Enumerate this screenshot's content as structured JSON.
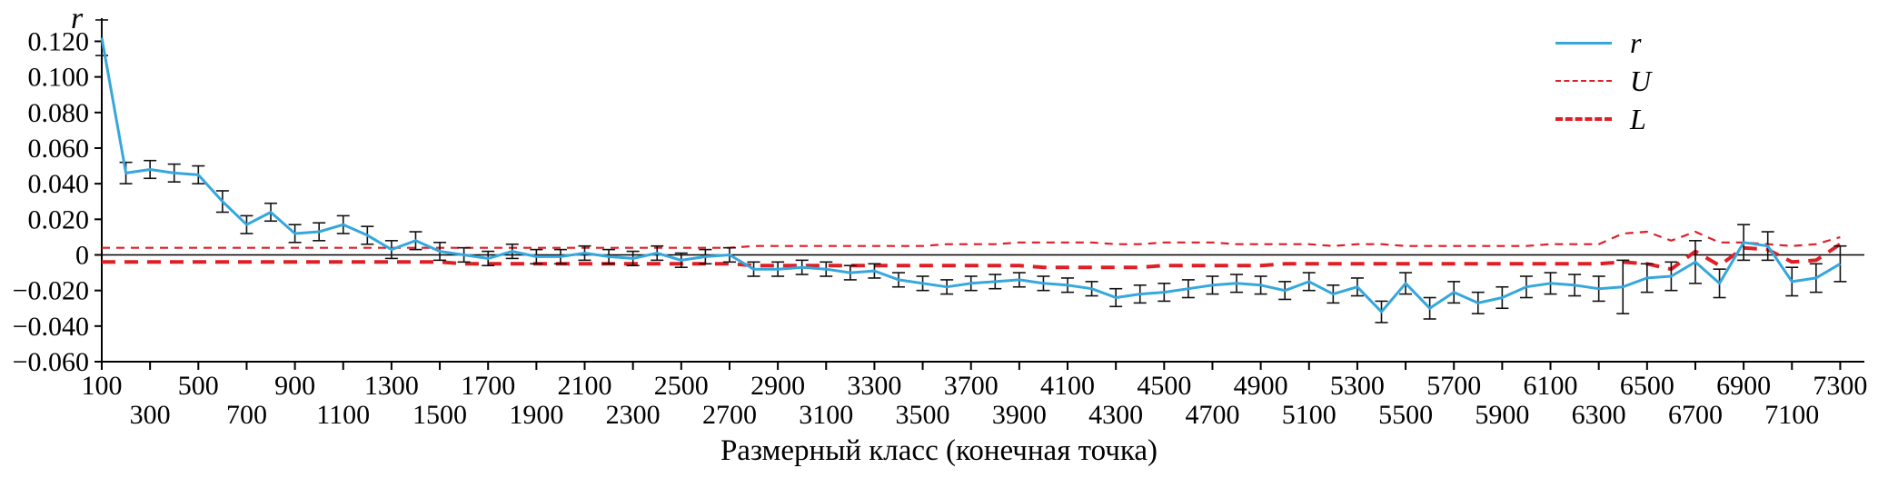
{
  "figure": {
    "y_axis_title": "r",
    "x_axis_label": "Размерный класс (конечная точка)"
  },
  "legend": {
    "items": [
      {
        "label": "r",
        "style": "solid-blue"
      },
      {
        "label": "U",
        "style": "dashed-thin-red"
      },
      {
        "label": "L",
        "style": "dashed-thick-red"
      }
    ]
  },
  "colors": {
    "r_line": "#35a7dc",
    "bound_line": "#de1f26",
    "error_bar": "#111111",
    "axis": "#000000"
  },
  "chart_data": {
    "type": "line",
    "title": "",
    "xlabel": "Размерный класс (конечная точка)",
    "ylabel": "r",
    "xlim": [
      100,
      7400
    ],
    "ylim": [
      -0.06,
      0.133
    ],
    "grid": false,
    "legend_position": "top-right",
    "x": [
      100,
      200,
      300,
      400,
      500,
      600,
      700,
      800,
      900,
      1000,
      1100,
      1200,
      1300,
      1400,
      1500,
      1600,
      1700,
      1800,
      1900,
      2000,
      2100,
      2200,
      2300,
      2400,
      2500,
      2600,
      2700,
      2800,
      2900,
      3000,
      3100,
      3200,
      3300,
      3400,
      3500,
      3600,
      3700,
      3800,
      3900,
      4000,
      4100,
      4200,
      4300,
      4400,
      4500,
      4600,
      4700,
      4800,
      4900,
      5000,
      5100,
      5200,
      5300,
      5400,
      5500,
      5600,
      5700,
      5800,
      5900,
      6000,
      6100,
      6200,
      6300,
      6400,
      6500,
      6600,
      6700,
      6800,
      6900,
      7000,
      7100,
      7200,
      7300
    ],
    "series": [
      {
        "name": "r",
        "values": [
          0.122,
          0.046,
          0.048,
          0.046,
          0.045,
          0.03,
          0.017,
          0.024,
          0.012,
          0.013,
          0.017,
          0.011,
          0.003,
          0.008,
          0.002,
          0.0,
          -0.002,
          0.002,
          -0.001,
          -0.001,
          0.001,
          -0.001,
          -0.002,
          0.001,
          -0.003,
          -0.001,
          0.0,
          -0.008,
          -0.008,
          -0.007,
          -0.008,
          -0.01,
          -0.009,
          -0.014,
          -0.016,
          -0.018,
          -0.016,
          -0.015,
          -0.014,
          -0.016,
          -0.017,
          -0.019,
          -0.024,
          -0.022,
          -0.021,
          -0.019,
          -0.017,
          -0.016,
          -0.017,
          -0.02,
          -0.015,
          -0.022,
          -0.018,
          -0.032,
          -0.016,
          -0.03,
          -0.021,
          -0.027,
          -0.024,
          -0.018,
          -0.016,
          -0.017,
          -0.019,
          -0.018,
          -0.013,
          -0.012,
          -0.004,
          -0.016,
          0.007,
          0.005,
          -0.015,
          -0.013,
          -0.005
        ],
        "errors": [
          0.01,
          0.006,
          0.005,
          0.005,
          0.005,
          0.006,
          0.005,
          0.005,
          0.005,
          0.005,
          0.005,
          0.005,
          0.005,
          0.005,
          0.005,
          0.004,
          0.004,
          0.004,
          0.004,
          0.004,
          0.004,
          0.004,
          0.004,
          0.004,
          0.004,
          0.004,
          0.004,
          0.004,
          0.004,
          0.004,
          0.004,
          0.004,
          0.004,
          0.004,
          0.004,
          0.004,
          0.004,
          0.004,
          0.004,
          0.004,
          0.004,
          0.004,
          0.005,
          0.005,
          0.005,
          0.005,
          0.005,
          0.005,
          0.005,
          0.005,
          0.005,
          0.005,
          0.005,
          0.006,
          0.006,
          0.006,
          0.006,
          0.006,
          0.006,
          0.006,
          0.006,
          0.006,
          0.007,
          0.015,
          0.008,
          0.008,
          0.012,
          0.008,
          0.01,
          0.008,
          0.008,
          0.008,
          0.01
        ]
      },
      {
        "name": "U",
        "values": [
          0.004,
          0.004,
          0.004,
          0.004,
          0.004,
          0.004,
          0.004,
          0.004,
          0.004,
          0.004,
          0.004,
          0.004,
          0.004,
          0.004,
          0.004,
          0.004,
          0.004,
          0.004,
          0.004,
          0.004,
          0.004,
          0.004,
          0.004,
          0.004,
          0.004,
          0.004,
          0.004,
          0.005,
          0.005,
          0.005,
          0.005,
          0.005,
          0.005,
          0.005,
          0.005,
          0.006,
          0.006,
          0.006,
          0.007,
          0.007,
          0.007,
          0.007,
          0.006,
          0.006,
          0.007,
          0.007,
          0.007,
          0.006,
          0.006,
          0.006,
          0.006,
          0.005,
          0.006,
          0.006,
          0.005,
          0.005,
          0.005,
          0.005,
          0.005,
          0.005,
          0.006,
          0.006,
          0.006,
          0.012,
          0.013,
          0.008,
          0.013,
          0.007,
          0.007,
          0.006,
          0.005,
          0.006,
          0.01
        ]
      },
      {
        "name": "L",
        "values": [
          -0.004,
          -0.004,
          -0.004,
          -0.004,
          -0.004,
          -0.004,
          -0.004,
          -0.004,
          -0.004,
          -0.004,
          -0.004,
          -0.004,
          -0.004,
          -0.004,
          -0.004,
          -0.005,
          -0.005,
          -0.005,
          -0.005,
          -0.005,
          -0.005,
          -0.005,
          -0.005,
          -0.005,
          -0.005,
          -0.005,
          -0.005,
          -0.006,
          -0.006,
          -0.006,
          -0.006,
          -0.006,
          -0.006,
          -0.006,
          -0.006,
          -0.006,
          -0.006,
          -0.006,
          -0.006,
          -0.007,
          -0.007,
          -0.007,
          -0.007,
          -0.007,
          -0.006,
          -0.006,
          -0.006,
          -0.006,
          -0.006,
          -0.005,
          -0.005,
          -0.005,
          -0.005,
          -0.005,
          -0.005,
          -0.005,
          -0.005,
          -0.005,
          -0.005,
          -0.005,
          -0.005,
          -0.005,
          -0.005,
          -0.004,
          -0.005,
          -0.008,
          0.002,
          -0.006,
          0.004,
          0.003,
          -0.004,
          -0.003,
          0.006
        ]
      }
    ],
    "yticks": {
      "values": [
        0.12,
        0.1,
        0.08,
        0.06,
        0.04,
        0.02,
        0,
        -0.02,
        -0.04,
        -0.06
      ],
      "labels": [
        "0.120",
        "0.100",
        "0.080",
        "0.060",
        "0.040",
        "0.020",
        "0",
        "−0.020",
        "−0.040",
        "−0.060"
      ]
    },
    "xticks": [
      100,
      300,
      500,
      700,
      900,
      1100,
      1300,
      1500,
      1700,
      1900,
      2100,
      2300,
      2500,
      2700,
      2900,
      3100,
      3300,
      3500,
      3700,
      3900,
      4100,
      4300,
      4500,
      4700,
      4900,
      5100,
      5300,
      5500,
      5700,
      5900,
      6100,
      6300,
      6500,
      6700,
      6900,
      7100,
      7300
    ]
  }
}
